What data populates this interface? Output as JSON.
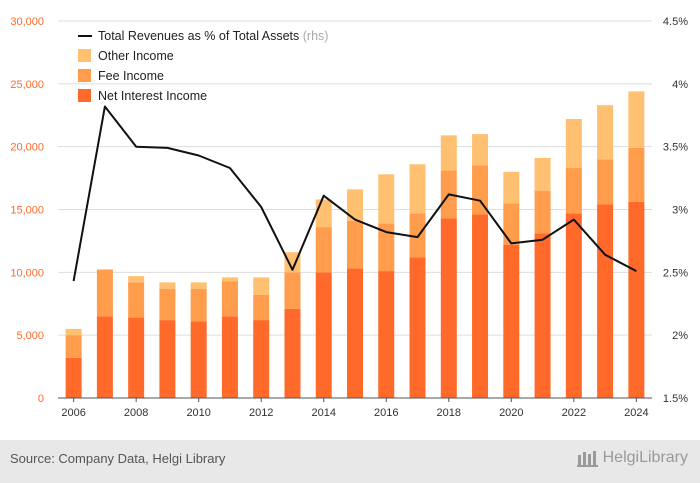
{
  "chart_data": {
    "type": "bar",
    "stacked": true,
    "categories": [
      "2006",
      "2007",
      "2008",
      "2009",
      "2010",
      "2011",
      "2012",
      "2013",
      "2014",
      "2015",
      "2016",
      "2017",
      "2018",
      "2019",
      "2020",
      "2021",
      "2022",
      "2023",
      "2024"
    ],
    "x_tick_labels": [
      "2006",
      "2008",
      "2010",
      "2012",
      "2014",
      "2016",
      "2018",
      "2020",
      "2022",
      "2024"
    ],
    "series": [
      {
        "name": "Net Interest Income",
        "color": "#ff6a2a",
        "values": [
          3200,
          6500,
          6400,
          6200,
          6100,
          6500,
          6200,
          7100,
          10000,
          10300,
          10100,
          11200,
          14300,
          14600,
          12200,
          13100,
          14700,
          15400,
          15600
        ]
      },
      {
        "name": "Fee Income",
        "color": "#ff9d4d",
        "values": [
          1800,
          3700,
          2800,
          2500,
          2600,
          2800,
          2000,
          2900,
          3600,
          3800,
          3800,
          3500,
          3800,
          3900,
          3300,
          3400,
          3600,
          3600,
          4300
        ]
      },
      {
        "name": "Other Income",
        "color": "#ffc072",
        "values": [
          500,
          50,
          500,
          500,
          500,
          300,
          1400,
          1600,
          2200,
          2500,
          3900,
          3900,
          2800,
          2500,
          2500,
          2600,
          3900,
          4300,
          4500
        ]
      }
    ],
    "line": {
      "name": "Total Revenues as % of Total Assets",
      "suffix": "(rhs)",
      "color": "#111111",
      "values": [
        2.43,
        3.82,
        3.5,
        3.49,
        3.43,
        3.33,
        3.02,
        2.52,
        3.11,
        2.92,
        2.82,
        2.78,
        3.12,
        3.07,
        2.73,
        2.76,
        2.92,
        2.64,
        2.51
      ]
    },
    "y_left": {
      "min": 0,
      "max": 30000,
      "ticks": [
        "0",
        "5,000",
        "10,000",
        "15,000",
        "20,000",
        "25,000",
        "30,000"
      ],
      "color": "#ff6a2a"
    },
    "y_right": {
      "min": 1.5,
      "max": 4.5,
      "ticks": [
        "1.5%",
        "2%",
        "2.5%",
        "3%",
        "3.5%",
        "4%",
        "4.5%"
      ]
    },
    "grid": true,
    "legend_position": "top-left"
  },
  "footer": {
    "source": "Source: Company Data, Helgi Library",
    "logo_text": "HelgiLibrary"
  }
}
